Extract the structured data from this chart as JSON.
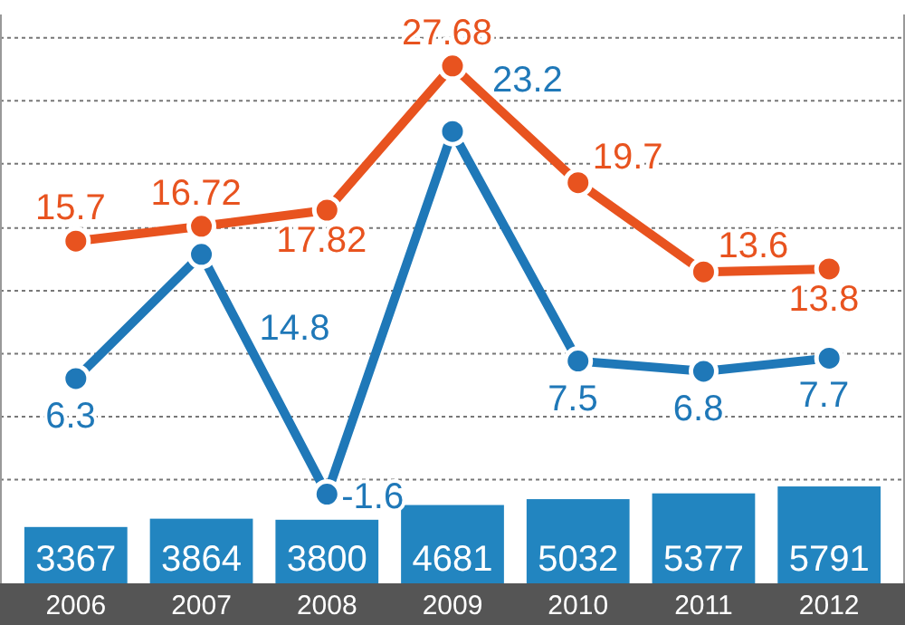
{
  "chart_data": {
    "type": "line",
    "categories": [
      "2006",
      "2007",
      "2008",
      "2009",
      "2010",
      "2011",
      "2012"
    ],
    "ylim": [
      -7.7,
      31.2
    ],
    "yticks": [
      {
        "value": -0.6,
        "label": null
      },
      {
        "value": 3.7,
        "label": null
      },
      {
        "value": 8,
        "label": null
      },
      {
        "value": 12.3,
        "label": null
      },
      {
        "value": 16.6,
        "label": null
      },
      {
        "value": 21,
        "label": null
      },
      {
        "value": 25.3,
        "label": null
      },
      {
        "value": 29.6,
        "label": null
      }
    ],
    "y2lim": [
      0,
      34000
    ],
    "tick_labels": "x",
    "grid": "y",
    "data_labels": true,
    "marker": "circle",
    "series": [
      {
        "type": "bar",
        "axis": "y2",
        "color": "#2285c0",
        "values": [
          3367,
          3864,
          3800,
          4681,
          5032,
          5377,
          5791
        ]
      },
      {
        "color": "#e8531f",
        "values": [
          15.7,
          16.72,
          17.82,
          27.68,
          19.7,
          13.6,
          13.8
        ]
      },
      {
        "color": "#1f78b8",
        "values": [
          6.3,
          14.8,
          -1.6,
          23.2,
          7.5,
          6.8,
          7.7
        ]
      }
    ]
  }
}
